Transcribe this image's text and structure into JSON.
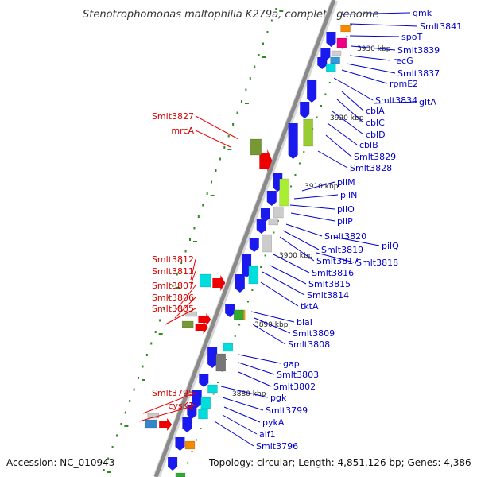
{
  "title": "Stenotrophomonas maltophilia K279a, complete genome",
  "footer": {
    "accession": "Accession: NC_010943",
    "summary": "Topology: circular; Length: 4,851,126 bp; Genes: 4,386"
  },
  "ticks": [
    "3930 kbp",
    "3920 kbp",
    "3910 kbp",
    "3900 kbp",
    "3890 kbp",
    "3880 kbp"
  ],
  "labels_left": [
    "Smlt3827",
    "mrcA",
    "Smlt3812",
    "Smlt3811",
    "Smlt3807",
    "Smlt3806",
    "Smlt3805",
    "Smlt3795",
    "cysK1"
  ],
  "labels_right": [
    "gmk",
    "Smlt3841",
    "spoT",
    "Smlt3839",
    "recG",
    "Smlt3837",
    "rpmE2",
    "Smlt3834",
    "gltA",
    "cblA",
    "cblC",
    "cblD",
    "cblB",
    "Smlt3829",
    "Smlt3828",
    "pilM",
    "pilN",
    "pilO",
    "pilP",
    "Smlt3820",
    "pilQ",
    "Smlt3819",
    "Smlt3817",
    "Smlt3818",
    "Smlt3816",
    "Smlt3815",
    "Smlt3814",
    "tktA",
    "blaI",
    "Smlt3809",
    "Smlt3808",
    "gap",
    "Smlt3803",
    "Smlt3802",
    "pgk",
    "Smlt3799",
    "pykA",
    "alf1",
    "Smlt3796"
  ],
  "colors": {
    "backbone": "#8a8a8a",
    "forward_gene": "#ee0000",
    "reverse_gene": "#1a1aee",
    "left_label": "#d40000",
    "right_label": "#0000cc",
    "dots": "#2e8b22"
  }
}
